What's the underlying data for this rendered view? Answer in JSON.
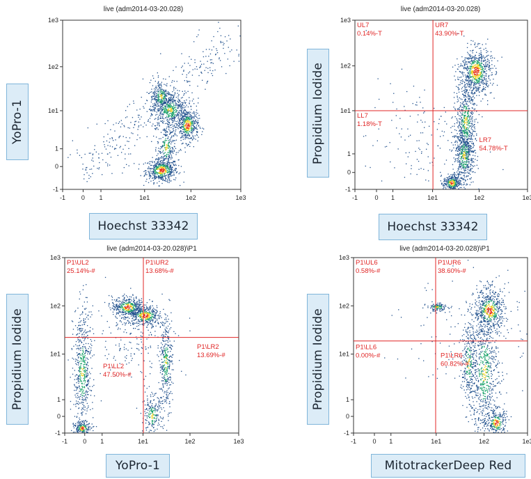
{
  "chart_data": [
    {
      "type": "scatter",
      "title": "live (adm2014-03-20.028)",
      "xlabel": "Hoechst 33342",
      "ylabel": "YoPro-1",
      "x_scale": "biexponential",
      "y_scale": "biexponential",
      "x_ticks": [
        "-1",
        "0",
        "1",
        "1e1",
        "1e2",
        "1e3"
      ],
      "y_ticks": [
        "-1",
        "0",
        "1",
        "1e1",
        "1e2",
        "1e3"
      ],
      "xlim": [
        -1,
        1000
      ],
      "ylim": [
        -1,
        1000
      ],
      "grid": false,
      "gates": [],
      "clusters": [
        {
          "x": 25,
          "y": 0.25,
          "density": "high"
        },
        {
          "x": 45,
          "y": 20,
          "density": "medium"
        },
        {
          "x": 75,
          "y": 5,
          "density": "high"
        },
        {
          "x": 28,
          "y": 2,
          "density": "low"
        }
      ]
    },
    {
      "type": "scatter",
      "title": "live (adm2014-03-20.028)",
      "xlabel": "Hoechst 33342",
      "ylabel": "Propidium Iodide",
      "x_scale": "biexponential",
      "y_scale": "biexponential",
      "x_ticks": [
        "-1",
        "0",
        "1",
        "1e1",
        "1e2",
        "1e3"
      ],
      "y_ticks": [
        "-1",
        "0",
        "1",
        "1e1",
        "1e2",
        "1e3"
      ],
      "xlim": [
        -1,
        1000
      ],
      "ylim": [
        -1,
        1000
      ],
      "grid": false,
      "gates": [
        {
          "name": "UL7",
          "value": "0.14%-T"
        },
        {
          "name": "UR7",
          "value": "43.90%-T"
        },
        {
          "name": "LL7",
          "value": "1.18%-T"
        },
        {
          "name": "LR7",
          "value": "54.78%-T"
        }
      ],
      "clusters": [
        {
          "x": 80,
          "y": 60,
          "density": "high"
        },
        {
          "x": 25,
          "y": -0.8,
          "density": "high"
        },
        {
          "x": 30,
          "y": 5,
          "density": "medium"
        }
      ]
    },
    {
      "type": "scatter",
      "title": "live (adm2014-03-20.028)\\P1",
      "xlabel": "YoPro-1",
      "ylabel": "Propidium Iodide",
      "x_scale": "biexponential",
      "y_scale": "biexponential",
      "x_ticks": [
        "-1",
        "0",
        "1",
        "1e1",
        "1e2",
        "1e3"
      ],
      "y_ticks": [
        "-1",
        "0",
        "1",
        "1e1",
        "1e2",
        "1e3"
      ],
      "xlim": [
        -1,
        1000
      ],
      "ylim": [
        -1,
        1000
      ],
      "grid": false,
      "gates": [
        {
          "name": "P1\\UL2",
          "value": "25.14%-#"
        },
        {
          "name": "P1\\UR2",
          "value": "13.68%-#"
        },
        {
          "name": "P1\\LL2",
          "value": "47.50%-#"
        },
        {
          "name": "P1\\LR2",
          "value": "13.69%-#"
        }
      ],
      "clusters": [
        {
          "x": 4,
          "y": 70,
          "density": "high"
        },
        {
          "x": 10,
          "y": 40,
          "density": "high"
        },
        {
          "x": 28,
          "y": 6,
          "density": "medium"
        },
        {
          "x": 0,
          "y": -0.8,
          "density": "medium"
        }
      ]
    },
    {
      "type": "scatter",
      "title": "live (adm2014-03-20.028)\\P1",
      "xlabel": "MitotrackerDeep Red",
      "ylabel": "Propidium Iodide",
      "x_scale": "biexponential",
      "y_scale": "biexponential",
      "x_ticks": [
        "-1",
        "0",
        "1",
        "1e1",
        "1e2",
        "1e3"
      ],
      "y_ticks": [
        "-1",
        "0",
        "1",
        "1e1",
        "1e2",
        "1e3"
      ],
      "xlim": [
        -1,
        1000
      ],
      "ylim": [
        -1,
        1000
      ],
      "grid": false,
      "gates": [
        {
          "name": "P1\\UL6",
          "value": "0.58%-#"
        },
        {
          "name": "P1\\UR6",
          "value": "38.60%-#"
        },
        {
          "name": "P1\\LL6",
          "value": "0.00%-#"
        },
        {
          "name": "P1\\LR6",
          "value": "60.82%-#"
        }
      ],
      "clusters": [
        {
          "x": 90,
          "y": 60,
          "density": "high"
        },
        {
          "x": 8,
          "y": 80,
          "density": "medium"
        },
        {
          "x": 60,
          "y": 5,
          "density": "medium"
        },
        {
          "x": 180,
          "y": -0.8,
          "density": "medium"
        }
      ]
    }
  ],
  "colors": {
    "gate_line": "#e02424",
    "gate_text": "#e02424",
    "density_low": "#1f4f8c",
    "density_mid": "#1ba36a",
    "density_high": "#f2d21a",
    "density_peak": "#e8351c",
    "label_fill": "#dcecf7",
    "label_border": "#7fb5da"
  }
}
